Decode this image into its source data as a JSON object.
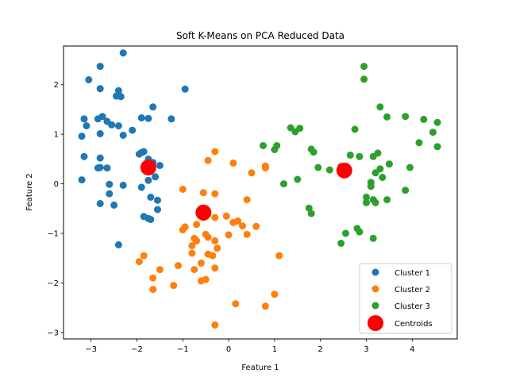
{
  "chart_data": {
    "type": "scatter",
    "title": "Soft K-Means on PCA Reduced Data",
    "xlabel": "Feature 1",
    "ylabel": "Feature 2",
    "xlim": [
      -3.6,
      4.98
    ],
    "ylim": [
      -3.13,
      2.78
    ],
    "xticks": [
      -3,
      -2,
      -1,
      0,
      1,
      2,
      3,
      4
    ],
    "yticks": [
      -3,
      -2,
      -1,
      0,
      1,
      2
    ],
    "grid": false,
    "legend_position": "lower right",
    "series": [
      {
        "name": "Cluster 1",
        "color": "#1f77b4",
        "marker": "circle",
        "points": [
          [
            -2.3,
            2.64
          ],
          [
            -2.8,
            2.37
          ],
          [
            -3.05,
            2.1
          ],
          [
            -2.8,
            1.92
          ],
          [
            -2.4,
            1.88
          ],
          [
            -2.45,
            1.77
          ],
          [
            -2.35,
            1.76
          ],
          [
            -0.95,
            1.91
          ],
          [
            -1.65,
            1.55
          ],
          [
            -2.75,
            1.36
          ],
          [
            -2.85,
            1.31
          ],
          [
            -3.15,
            1.31
          ],
          [
            -2.65,
            1.26
          ],
          [
            -2.55,
            1.19
          ],
          [
            -2.4,
            1.17
          ],
          [
            -3.1,
            1.17
          ],
          [
            -1.9,
            1.33
          ],
          [
            -1.75,
            1.32
          ],
          [
            -1.25,
            1.31
          ],
          [
            -2.1,
            1.08
          ],
          [
            -2.3,
            0.98
          ],
          [
            -2.8,
            1.01
          ],
          [
            -3.2,
            0.96
          ],
          [
            -1.9,
            0.63
          ],
          [
            -1.85,
            0.65
          ],
          [
            -1.95,
            0.6
          ],
          [
            -3.15,
            0.55
          ],
          [
            -2.8,
            0.52
          ],
          [
            -1.75,
            0.5
          ],
          [
            -1.65,
            0.43
          ],
          [
            -1.5,
            0.37
          ],
          [
            -2.8,
            0.33
          ],
          [
            -2.85,
            0.32
          ],
          [
            -2.65,
            0.32
          ],
          [
            -1.6,
            0.14
          ],
          [
            -1.75,
            0.07
          ],
          [
            -3.2,
            0.08
          ],
          [
            -2.6,
            -0.01
          ],
          [
            -2.3,
            -0.03
          ],
          [
            -1.9,
            -0.07
          ],
          [
            -2.6,
            -0.2
          ],
          [
            -1.7,
            -0.27
          ],
          [
            -1.55,
            -0.33
          ],
          [
            -2.8,
            -0.4
          ],
          [
            -2.5,
            -0.43
          ],
          [
            -1.55,
            -0.52
          ],
          [
            -1.85,
            -0.66
          ],
          [
            -1.75,
            -0.7
          ],
          [
            -1.7,
            -0.72
          ],
          [
            -2.4,
            -1.23
          ]
        ]
      },
      {
        "name": "Cluster 2",
        "color": "#ff7f0e",
        "marker": "circle",
        "points": [
          [
            -0.3,
            0.65
          ],
          [
            -0.45,
            0.47
          ],
          [
            0.1,
            0.42
          ],
          [
            0.8,
            0.36
          ],
          [
            0.8,
            0.32
          ],
          [
            0.5,
            0.22
          ],
          [
            -1.0,
            -0.11
          ],
          [
            -0.55,
            -0.18
          ],
          [
            -0.3,
            -0.2
          ],
          [
            0.4,
            -0.32
          ],
          [
            -0.6,
            -0.62
          ],
          [
            -0.55,
            -0.68
          ],
          [
            -0.3,
            -0.68
          ],
          [
            -0.05,
            -0.65
          ],
          [
            0.1,
            -0.78
          ],
          [
            0.2,
            -0.75
          ],
          [
            0.3,
            -0.85
          ],
          [
            0.6,
            -0.86
          ],
          [
            -0.95,
            -0.87
          ],
          [
            -1.0,
            -0.93
          ],
          [
            -0.7,
            -0.82
          ],
          [
            -0.5,
            -1.02
          ],
          [
            -0.45,
            -1.08
          ],
          [
            -0.75,
            -1.1
          ],
          [
            -0.7,
            -1.15
          ],
          [
            -0.3,
            -1.15
          ],
          [
            -0.8,
            -1.25
          ],
          [
            0.4,
            -1.02
          ],
          [
            0.0,
            -1.03
          ],
          [
            -0.25,
            -1.3
          ],
          [
            -0.8,
            -1.4
          ],
          [
            -0.45,
            -1.42
          ],
          [
            -0.35,
            -1.45
          ],
          [
            -0.6,
            -1.6
          ],
          [
            -0.3,
            -1.7
          ],
          [
            -0.5,
            -1.93
          ],
          [
            -0.6,
            -1.96
          ],
          [
            -0.75,
            -1.73
          ],
          [
            -1.1,
            -1.65
          ],
          [
            -1.5,
            -1.73
          ],
          [
            -1.85,
            -1.45
          ],
          [
            -1.95,
            -1.57
          ],
          [
            -1.65,
            -1.9
          ],
          [
            -1.65,
            -2.13
          ],
          [
            -1.2,
            -2.05
          ],
          [
            1.1,
            -1.45
          ],
          [
            1.0,
            -2.23
          ],
          [
            0.15,
            -2.42
          ],
          [
            0.8,
            -2.47
          ],
          [
            -0.3,
            -2.85
          ]
        ]
      },
      {
        "name": "Cluster 3",
        "color": "#2ca02c",
        "marker": "circle",
        "points": [
          [
            2.95,
            2.37
          ],
          [
            2.95,
            2.11
          ],
          [
            3.3,
            1.55
          ],
          [
            3.45,
            1.35
          ],
          [
            3.85,
            1.36
          ],
          [
            4.25,
            1.3
          ],
          [
            4.55,
            1.24
          ],
          [
            1.35,
            1.13
          ],
          [
            1.55,
            1.12
          ],
          [
            1.45,
            1.05
          ],
          [
            2.75,
            1.1
          ],
          [
            4.45,
            1.04
          ],
          [
            4.15,
            0.83
          ],
          [
            4.55,
            0.75
          ],
          [
            1.05,
            0.77
          ],
          [
            0.75,
            0.77
          ],
          [
            1.0,
            0.69
          ],
          [
            1.8,
            0.7
          ],
          [
            1.85,
            0.64
          ],
          [
            2.65,
            0.58
          ],
          [
            2.85,
            0.55
          ],
          [
            3.25,
            0.62
          ],
          [
            3.15,
            0.55
          ],
          [
            3.5,
            0.4
          ],
          [
            3.3,
            0.3
          ],
          [
            2.45,
            0.35
          ],
          [
            1.95,
            0.33
          ],
          [
            2.2,
            0.28
          ],
          [
            3.2,
            0.22
          ],
          [
            3.35,
            0.13
          ],
          [
            1.5,
            0.09
          ],
          [
            1.2,
            0.0
          ],
          [
            3.1,
            0.03
          ],
          [
            3.1,
            -0.05
          ],
          [
            3.95,
            0.33
          ],
          [
            3.85,
            -0.13
          ],
          [
            3.0,
            -0.27
          ],
          [
            3.15,
            -0.32
          ],
          [
            3.0,
            -0.38
          ],
          [
            3.2,
            -0.38
          ],
          [
            3.45,
            -0.32
          ],
          [
            1.75,
            -0.49
          ],
          [
            1.8,
            -0.6
          ],
          [
            2.8,
            -0.9
          ],
          [
            2.85,
            -0.97
          ],
          [
            2.55,
            -1.0
          ],
          [
            3.15,
            -1.1
          ],
          [
            2.45,
            -1.2
          ]
        ]
      }
    ],
    "centroids": {
      "name": "Centroids",
      "color": "#ff0000",
      "marker": "circle-large",
      "points": [
        [
          -1.75,
          0.33
        ],
        [
          -0.55,
          -0.58
        ],
        [
          2.52,
          0.27
        ]
      ]
    }
  }
}
